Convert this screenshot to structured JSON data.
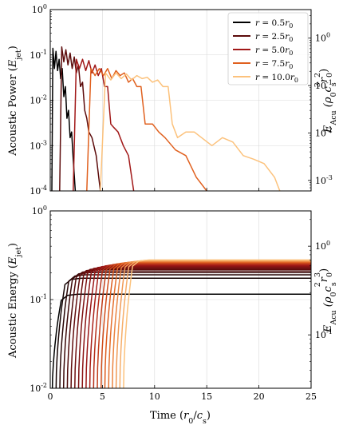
{
  "chart_data": [
    {
      "type": "line",
      "title": "",
      "xlabel": "",
      "ylabel": "Acoustic Power (Ė_jet)",
      "ylabel_parts": {
        "pre": "Acoustic Power (",
        "sym": "E",
        "dot": "·",
        "sub": "jet",
        "post": ")"
      },
      "y2label": "Ė_Acu (ρ0 cs^3 r0^2)",
      "y2label_parts": {
        "sym": "E",
        "dot": "·",
        "sub": "Acu",
        "mid": " (ρ",
        "s0": "0",
        "c": "c",
        "cs": "s",
        "c3": "3",
        "r": "r",
        "rs": "0",
        "r2": "2",
        "end": ")"
      },
      "xlim": [
        0,
        25
      ],
      "ylim": [
        0.0001,
        1
      ],
      "yscale": "log",
      "y2lim": [
        0.0006,
        4
      ],
      "grid": true,
      "x_ticks": [
        "0",
        "5",
        "10",
        "15",
        "20",
        "25"
      ],
      "y_ticks": [
        {
          "base": "10",
          "exp": "0"
        },
        {
          "base": "10",
          "exp": "-1"
        },
        {
          "base": "10",
          "exp": "-2"
        },
        {
          "base": "10",
          "exp": "-3"
        },
        {
          "base": "10",
          "exp": "-4"
        }
      ],
      "y2_ticks": [
        {
          "base": "10",
          "exp": "0"
        },
        {
          "base": "10",
          "exp": "-1"
        },
        {
          "base": "10",
          "exp": "-2"
        },
        {
          "base": "10",
          "exp": "-3"
        }
      ],
      "legend_placement": "top-right",
      "legend": [
        {
          "label_pre": "r = ",
          "value": "0.5",
          "r": "r",
          "sub": "0",
          "color": "#000000"
        },
        {
          "label_pre": "r = ",
          "value": "2.5",
          "r": "r",
          "sub": "0",
          "color": "#5c0b0b"
        },
        {
          "label_pre": "r = ",
          "value": "5.0",
          "r": "r",
          "sub": "0",
          "color": "#a11818"
        },
        {
          "label_pre": "r = ",
          "value": "7.5",
          "r": "r",
          "sub": "0",
          "color": "#e0601e"
        },
        {
          "label_pre": "r = ",
          "value": "10.0",
          "r": "r",
          "sub": "0",
          "color": "#fcc27c"
        }
      ],
      "series_colors": [
        "#000000",
        "#5c0b0b",
        "#a11818",
        "#e0601e",
        "#fcc27c"
      ],
      "series_radii": [
        0.5,
        1.0,
        1.5,
        2.0,
        2.5,
        3.0,
        3.5,
        4.0,
        4.5,
        5.0,
        5.5,
        6.0,
        6.5,
        7.0,
        7.5,
        8.0,
        8.5,
        9.0,
        9.5,
        10.0
      ],
      "series": [
        {
          "radius": 0.5,
          "points": [
            [
              0.15,
              0.0001
            ],
            [
              0.25,
              0.14
            ],
            [
              0.4,
              0.05
            ],
            [
              0.55,
              0.12
            ],
            [
              0.7,
              0.045
            ],
            [
              0.85,
              0.08
            ],
            [
              1.0,
              0.03
            ],
            [
              1.15,
              0.05
            ],
            [
              1.3,
              0.012
            ],
            [
              1.45,
              0.02
            ],
            [
              1.6,
              0.004
            ],
            [
              1.75,
              0.006
            ],
            [
              1.9,
              0.0015
            ],
            [
              2.05,
              0.002
            ],
            [
              2.2,
              0.0005
            ],
            [
              2.4,
              0.0001
            ]
          ]
        },
        {
          "radius": 2.5,
          "points": [
            [
              0.9,
              0.0001
            ],
            [
              1.1,
              0.15
            ],
            [
              1.3,
              0.07
            ],
            [
              1.5,
              0.13
            ],
            [
              1.7,
              0.06
            ],
            [
              1.9,
              0.11
            ],
            [
              2.1,
              0.05
            ],
            [
              2.3,
              0.09
            ],
            [
              2.5,
              0.04
            ],
            [
              2.7,
              0.06
            ],
            [
              2.9,
              0.02
            ],
            [
              3.1,
              0.025
            ],
            [
              3.3,
              0.006
            ],
            [
              3.5,
              0.004
            ],
            [
              3.7,
              0.002
            ],
            [
              4.0,
              0.0015
            ],
            [
              4.4,
              0.0006
            ],
            [
              4.8,
              0.0001
            ]
          ]
        },
        {
          "radius": 5.0,
          "points": [
            [
              2.2,
              0.0001
            ],
            [
              2.5,
              0.08
            ],
            [
              2.8,
              0.05
            ],
            [
              3.1,
              0.08
            ],
            [
              3.4,
              0.045
            ],
            [
              3.7,
              0.075
            ],
            [
              4.0,
              0.04
            ],
            [
              4.3,
              0.06
            ],
            [
              4.6,
              0.035
            ],
            [
              4.9,
              0.05
            ],
            [
              5.2,
              0.02
            ],
            [
              5.5,
              0.02
            ],
            [
              5.8,
              0.003
            ],
            [
              6.1,
              0.0025
            ],
            [
              6.5,
              0.002
            ],
            [
              7.0,
              0.001
            ],
            [
              7.5,
              0.0006
            ],
            [
              8.0,
              0.0001
            ]
          ]
        },
        {
          "radius": 7.5,
          "points": [
            [
              3.5,
              0.0001
            ],
            [
              3.9,
              0.05
            ],
            [
              4.3,
              0.035
            ],
            [
              4.7,
              0.05
            ],
            [
              5.1,
              0.035
            ],
            [
              5.5,
              0.05
            ],
            [
              5.9,
              0.03
            ],
            [
              6.3,
              0.045
            ],
            [
              6.7,
              0.035
            ],
            [
              7.1,
              0.04
            ],
            [
              7.5,
              0.025
            ],
            [
              7.9,
              0.03
            ],
            [
              8.3,
              0.02
            ],
            [
              8.7,
              0.02
            ],
            [
              9.1,
              0.003
            ],
            [
              9.8,
              0.003
            ],
            [
              10.4,
              0.002
            ],
            [
              11.0,
              0.0015
            ],
            [
              12.0,
              0.0008
            ],
            [
              13.0,
              0.0006
            ],
            [
              14.0,
              0.0002
            ],
            [
              15.0,
              0.0001
            ]
          ]
        },
        {
          "radius": 10.0,
          "points": [
            [
              4.8,
              0.0001
            ],
            [
              5.3,
              0.04
            ],
            [
              5.8,
              0.028
            ],
            [
              6.3,
              0.04
            ],
            [
              6.8,
              0.03
            ],
            [
              7.3,
              0.038
            ],
            [
              7.8,
              0.028
            ],
            [
              8.3,
              0.035
            ],
            [
              8.8,
              0.03
            ],
            [
              9.3,
              0.032
            ],
            [
              9.8,
              0.025
            ],
            [
              10.3,
              0.028
            ],
            [
              10.8,
              0.02
            ],
            [
              11.3,
              0.02
            ],
            [
              11.7,
              0.003
            ],
            [
              12.2,
              0.0015
            ],
            [
              13.0,
              0.002
            ],
            [
              13.8,
              0.002
            ],
            [
              14.5,
              0.0015
            ],
            [
              15.5,
              0.001
            ],
            [
              16.5,
              0.0015
            ],
            [
              17.5,
              0.0012
            ],
            [
              18.5,
              0.0006
            ],
            [
              19.5,
              0.0005
            ],
            [
              20.5,
              0.0004
            ],
            [
              21.5,
              0.0002
            ],
            [
              22.0,
              0.0001
            ]
          ]
        }
      ]
    },
    {
      "type": "line",
      "title": "",
      "xlabel": "Time (r0/cs)",
      "xlabel_parts": {
        "pre": "Time (",
        "r": "r",
        "rs": "0",
        "slash": "/",
        "c": "c",
        "cs": "s",
        "post": ")"
      },
      "ylabel": "Acoustic Energy (E_jet)",
      "ylabel_parts": {
        "pre": "Acoustic Energy (",
        "sym": "E",
        "sub": "jet",
        "post": ")"
      },
      "y2label": "E_Acu (ρ0 cs^2 r0^3)",
      "y2label_parts": {
        "sym": "E",
        "sub": "Acu",
        "mid": " (ρ",
        "s0": "0",
        "c": "c",
        "cs": "s",
        "c2": "2",
        "r": "r",
        "rs": "0",
        "r3": "3",
        "end": ")"
      },
      "xlim": [
        0,
        25
      ],
      "ylim": [
        0.01,
        1
      ],
      "yscale": "log",
      "y2lim": [
        0.025,
        2.5
      ],
      "grid": true,
      "x_ticks": [
        "0",
        "5",
        "10",
        "15",
        "20",
        "25"
      ],
      "y_ticks": [
        {
          "base": "10",
          "exp": "0"
        },
        {
          "base": "10",
          "exp": "-1"
        },
        {
          "base": "10",
          "exp": "-2"
        }
      ],
      "y2_ticks": [
        {
          "base": "10",
          "exp": "0"
        },
        {
          "base": "10",
          "exp": "-1"
        }
      ],
      "plateau_min": 0.115,
      "plateau_max": 0.28,
      "rise_start": 0.15,
      "rise_spacing": 0.36,
      "rise_duration": 0.9
    }
  ]
}
